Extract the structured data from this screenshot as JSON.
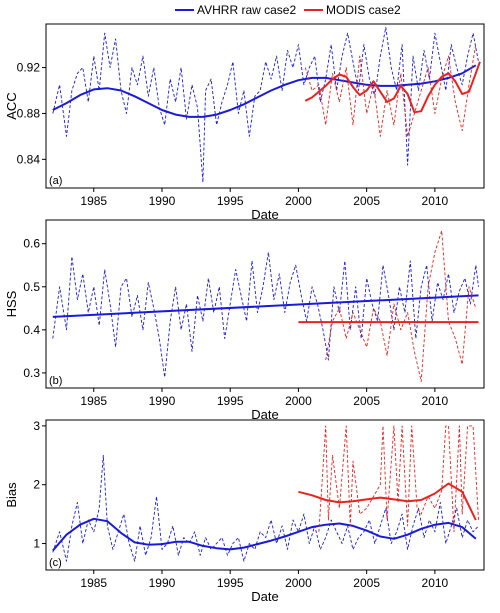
{
  "legend": [
    {
      "name": "AVHRR raw case2",
      "color": "#1a1adb"
    },
    {
      "name": "MODIS case2",
      "color": "#e8231f"
    }
  ],
  "chart_data": [
    {
      "type": "line",
      "panel_tag": "(a)",
      "xlabel": "Date",
      "ylabel": "ACC",
      "xlim": [
        1981.5,
        2013.6
      ],
      "ylim": [
        0.815,
        0.958
      ],
      "xticks": [
        1985,
        1990,
        1995,
        2000,
        2005,
        2010
      ],
      "yticks": [
        0.84,
        0.88,
        0.92
      ],
      "ytick_labels": [
        "0.84",
        "0.88",
        "0.92"
      ],
      "series": [
        {
          "name": "AVHRR raw case2",
          "color": "#1a1adb",
          "style": "dashed",
          "x": [
            1982.0,
            1982.5,
            1983.0,
            1983.4,
            1983.8,
            1984.2,
            1984.6,
            1985.0,
            1985.4,
            1985.8,
            1986.2,
            1986.6,
            1987.0,
            1987.4,
            1987.8,
            1988.2,
            1988.6,
            1989.0,
            1989.4,
            1989.8,
            1990.2,
            1990.6,
            1991.0,
            1991.4,
            1991.8,
            1992.2,
            1992.6,
            1993.0,
            1993.2,
            1993.6,
            1994.0,
            1994.4,
            1994.8,
            1995.2,
            1995.6,
            1996.0,
            1996.4,
            1996.8,
            1997.2,
            1997.6,
            1998.0,
            1998.4,
            1998.8,
            1999.2,
            1999.6,
            2000.0,
            2000.4,
            2000.8,
            2001.2,
            2001.6,
            2002.0,
            2002.4,
            2002.8,
            2003.2,
            2003.6,
            2004.0,
            2004.4,
            2004.8,
            2005.2,
            2005.6,
            2006.0,
            2006.4,
            2006.8,
            2007.2,
            2007.6,
            2008.0,
            2008.4,
            2008.8,
            2009.2,
            2009.6,
            2010.0,
            2010.4,
            2010.8,
            2011.2,
            2011.6,
            2012.0,
            2012.4,
            2012.8,
            2013.2
          ],
          "y": [
            0.88,
            0.905,
            0.86,
            0.9,
            0.915,
            0.92,
            0.89,
            0.93,
            0.9,
            0.95,
            0.92,
            0.945,
            0.9,
            0.88,
            0.92,
            0.905,
            0.93,
            0.895,
            0.92,
            0.885,
            0.87,
            0.91,
            0.89,
            0.92,
            0.875,
            0.905,
            0.885,
            0.82,
            0.9,
            0.91,
            0.87,
            0.89,
            0.905,
            0.925,
            0.88,
            0.9,
            0.86,
            0.895,
            0.9,
            0.925,
            0.91,
            0.93,
            0.9,
            0.935,
            0.92,
            0.94,
            0.905,
            0.92,
            0.93,
            0.89,
            0.91,
            0.94,
            0.9,
            0.93,
            0.95,
            0.925,
            0.9,
            0.94,
            0.91,
            0.895,
            0.93,
            0.955,
            0.92,
            0.9,
            0.94,
            0.835,
            0.93,
            0.9,
            0.935,
            0.91,
            0.95,
            0.925,
            0.9,
            0.94,
            0.92,
            0.905,
            0.93,
            0.95,
            0.925
          ]
        },
        {
          "name": "AVHRR raw case2",
          "color": "#1a1adb",
          "style": "solid",
          "x": [
            1982.0,
            1983.0,
            1984.0,
            1985.0,
            1986.0,
            1987.0,
            1988.0,
            1989.0,
            1990.0,
            1991.0,
            1992.0,
            1993.0,
            1994.0,
            1995.0,
            1996.0,
            1997.0,
            1998.0,
            1999.0,
            2000.0,
            2001.0,
            2002.0,
            2003.0,
            2004.0,
            2005.0,
            2006.0,
            2007.0,
            2008.0,
            2009.0,
            2010.0,
            2011.0,
            2012.0,
            2013.0
          ],
          "y": [
            0.883,
            0.889,
            0.896,
            0.901,
            0.902,
            0.9,
            0.895,
            0.889,
            0.883,
            0.879,
            0.877,
            0.877,
            0.879,
            0.883,
            0.888,
            0.894,
            0.9,
            0.905,
            0.909,
            0.911,
            0.911,
            0.909,
            0.907,
            0.905,
            0.904,
            0.904,
            0.905,
            0.906,
            0.908,
            0.911,
            0.915,
            0.922
          ]
        },
        {
          "name": "MODIS case2",
          "color": "#e8231f",
          "style": "dashed",
          "x": [
            2000.5,
            2001.0,
            2001.5,
            2002.0,
            2002.5,
            2003.0,
            2003.5,
            2004.0,
            2004.5,
            2005.0,
            2005.5,
            2006.0,
            2006.5,
            2007.0,
            2007.5,
            2008.0,
            2008.5,
            2009.0,
            2009.5,
            2010.0,
            2010.5,
            2011.0,
            2011.5,
            2012.0,
            2012.5,
            2013.0
          ],
          "y": [
            0.92,
            0.9,
            0.905,
            0.87,
            0.915,
            0.89,
            0.92,
            0.87,
            0.93,
            0.88,
            0.905,
            0.86,
            0.9,
            0.87,
            0.915,
            0.86,
            0.88,
            0.9,
            0.92,
            0.88,
            0.91,
            0.93,
            0.89,
            0.865,
            0.905,
            0.94
          ]
        },
        {
          "name": "MODIS case2",
          "color": "#e8231f",
          "style": "solid",
          "x": [
            2000.5,
            2001.0,
            2001.5,
            2002.0,
            2002.5,
            2003.0,
            2003.5,
            2004.0,
            2004.5,
            2005.0,
            2005.5,
            2006.0,
            2006.5,
            2007.0,
            2007.5,
            2008.0,
            2008.5,
            2009.0,
            2009.5,
            2010.0,
            2010.5,
            2011.0,
            2011.5,
            2012.0,
            2012.5,
            2013.0,
            2013.3
          ],
          "y": [
            0.891,
            0.894,
            0.899,
            0.904,
            0.91,
            0.914,
            0.912,
            0.903,
            0.896,
            0.9,
            0.908,
            0.899,
            0.89,
            0.893,
            0.904,
            0.897,
            0.881,
            0.882,
            0.895,
            0.905,
            0.912,
            0.915,
            0.908,
            0.897,
            0.899,
            0.915,
            0.925
          ]
        }
      ]
    },
    {
      "type": "line",
      "panel_tag": "(b)",
      "xlabel": "Date",
      "ylabel": "HSS",
      "xlim": [
        1981.5,
        2013.6
      ],
      "ylim": [
        0.265,
        0.655
      ],
      "xticks": [
        1985,
        1990,
        1995,
        2000,
        2005,
        2010
      ],
      "yticks": [
        0.3,
        0.4,
        0.5,
        0.6
      ],
      "ytick_labels": [
        "0.3",
        "0.4",
        "0.5",
        "0.6"
      ],
      "series": [
        {
          "name": "AVHRR raw case2",
          "color": "#1a1adb",
          "style": "dashed",
          "x": [
            1982.0,
            1982.5,
            1983.0,
            1983.4,
            1983.8,
            1984.2,
            1984.6,
            1985.0,
            1985.4,
            1985.8,
            1986.2,
            1986.6,
            1987.0,
            1987.4,
            1987.8,
            1988.2,
            1988.6,
            1989.0,
            1989.4,
            1989.8,
            1990.2,
            1990.6,
            1991.0,
            1991.4,
            1991.8,
            1992.2,
            1992.6,
            1993.0,
            1993.4,
            1993.8,
            1994.2,
            1994.6,
            1995.0,
            1995.4,
            1995.8,
            1996.2,
            1996.6,
            1997.0,
            1997.4,
            1997.8,
            1998.2,
            1998.6,
            1999.0,
            1999.4,
            1999.8,
            2000.2,
            2000.6,
            2001.0,
            2001.4,
            2001.8,
            2002.2,
            2002.6,
            2003.0,
            2003.4,
            2003.8,
            2004.2,
            2004.6,
            2005.0,
            2005.4,
            2005.8,
            2006.2,
            2006.6,
            2007.0,
            2007.4,
            2007.8,
            2008.2,
            2008.6,
            2009.0,
            2009.4,
            2009.8,
            2010.2,
            2010.6,
            2011.0,
            2011.4,
            2011.8,
            2012.2,
            2012.6,
            2013.0,
            2013.2
          ],
          "y": [
            0.38,
            0.5,
            0.4,
            0.57,
            0.47,
            0.53,
            0.44,
            0.5,
            0.41,
            0.54,
            0.46,
            0.36,
            0.5,
            0.52,
            0.43,
            0.48,
            0.4,
            0.51,
            0.45,
            0.38,
            0.29,
            0.42,
            0.5,
            0.4,
            0.46,
            0.35,
            0.48,
            0.42,
            0.52,
            0.44,
            0.5,
            0.38,
            0.46,
            0.54,
            0.48,
            0.42,
            0.56,
            0.44,
            0.5,
            0.58,
            0.47,
            0.53,
            0.44,
            0.51,
            0.55,
            0.48,
            0.42,
            0.5,
            0.46,
            0.4,
            0.33,
            0.5,
            0.44,
            0.56,
            0.4,
            0.5,
            0.38,
            0.52,
            0.46,
            0.42,
            0.55,
            0.48,
            0.4,
            0.5,
            0.44,
            0.56,
            0.38,
            0.5,
            0.55,
            0.42,
            0.51,
            0.47,
            0.53,
            0.44,
            0.49,
            0.52,
            0.46,
            0.55,
            0.5
          ]
        },
        {
          "name": "AVHRR raw case2",
          "color": "#1a1adb",
          "style": "solid",
          "x": [
            1982.0,
            2013.2
          ],
          "y": [
            0.43,
            0.48
          ]
        },
        {
          "name": "MODIS case2",
          "color": "#e8231f",
          "style": "dashed",
          "x": [
            2002.0,
            2002.5,
            2003.0,
            2003.5,
            2004.0,
            2004.5,
            2005.0,
            2005.5,
            2006.0,
            2006.5,
            2007.0,
            2007.5,
            2008.0,
            2008.5,
            2009.0,
            2009.5,
            2010.0,
            2010.5,
            2011.0,
            2011.5,
            2012.0,
            2012.5,
            2013.0
          ],
          "y": [
            0.33,
            0.42,
            0.45,
            0.38,
            0.44,
            0.4,
            0.36,
            0.45,
            0.42,
            0.34,
            0.46,
            0.4,
            0.44,
            0.35,
            0.28,
            0.5,
            0.58,
            0.63,
            0.42,
            0.38,
            0.32,
            0.5,
            0.45
          ]
        },
        {
          "name": "MODIS case2",
          "color": "#e8231f",
          "style": "solid",
          "x": [
            2000.0,
            2013.2
          ],
          "y": [
            0.418,
            0.418
          ]
        }
      ]
    },
    {
      "type": "line",
      "panel_tag": "(c)",
      "xlabel": "Date",
      "ylabel": "Bias",
      "xlim": [
        1981.5,
        2013.6
      ],
      "ylim": [
        0.55,
        3.1
      ],
      "xticks": [
        1985,
        1990,
        1995,
        2000,
        2005,
        2010
      ],
      "yticks": [
        1,
        2,
        3
      ],
      "ytick_labels": [
        "1",
        "2",
        "3"
      ],
      "series": [
        {
          "name": "AVHRR raw case2",
          "color": "#1a1adb",
          "style": "dashed",
          "x": [
            1982.0,
            1982.5,
            1983.0,
            1983.4,
            1983.8,
            1984.2,
            1984.6,
            1985.0,
            1985.4,
            1985.7,
            1986.0,
            1986.4,
            1986.8,
            1987.2,
            1987.6,
            1988.0,
            1988.4,
            1988.8,
            1989.2,
            1989.6,
            1990.0,
            1990.4,
            1990.8,
            1991.2,
            1991.6,
            1992.0,
            1992.4,
            1992.8,
            1993.2,
            1993.6,
            1994.0,
            1994.4,
            1994.8,
            1995.2,
            1995.6,
            1996.0,
            1996.4,
            1996.8,
            1997.2,
            1997.6,
            1998.0,
            1998.4,
            1998.8,
            1999.2,
            1999.6,
            2000.0,
            2000.4,
            2000.8,
            2001.2,
            2001.6,
            2002.0,
            2002.4,
            2002.8,
            2003.2,
            2003.6,
            2004.0,
            2004.4,
            2004.8,
            2005.2,
            2005.6,
            2006.0,
            2006.4,
            2006.8,
            2007.2,
            2007.6,
            2008.0,
            2008.4,
            2008.8,
            2009.2,
            2009.6,
            2010.0,
            2010.4,
            2010.8,
            2011.2,
            2011.6,
            2012.0,
            2012.4,
            2012.8,
            2013.2
          ],
          "y": [
            0.85,
            1.2,
            0.7,
            1.3,
            1.7,
            1.0,
            1.4,
            1.2,
            1.6,
            2.5,
            1.3,
            0.9,
            1.2,
            1.5,
            1.0,
            0.7,
            1.3,
            0.8,
            1.1,
            1.8,
            0.9,
            1.0,
            1.3,
            0.8,
            1.1,
            1.0,
            1.2,
            0.8,
            1.1,
            0.9,
            1.0,
            1.1,
            0.8,
            1.0,
            1.1,
            0.7,
            1.0,
            0.9,
            1.2,
            1.1,
            1.4,
            1.0,
            1.3,
            0.9,
            1.4,
            1.2,
            1.5,
            1.0,
            1.3,
            0.9,
            1.1,
            1.4,
            1.2,
            1.0,
            1.3,
            0.9,
            1.1,
            1.2,
            1.4,
            1.0,
            1.3,
            1.6,
            1.0,
            1.2,
            1.5,
            0.9,
            1.3,
            1.6,
            1.1,
            1.4,
            1.2,
            1.7,
            1.0,
            1.3,
            1.6,
            1.1,
            1.4,
            1.2,
            1.3
          ]
        },
        {
          "name": "AVHRR raw case2",
          "color": "#1a1adb",
          "style": "solid",
          "x": [
            1982.0,
            1983.0,
            1984.0,
            1985.0,
            1986.0,
            1987.0,
            1988.0,
            1989.0,
            1990.0,
            1991.0,
            1992.0,
            1993.0,
            1994.0,
            1995.0,
            1996.0,
            1997.0,
            1998.0,
            1999.0,
            2000.0,
            2001.0,
            2002.0,
            2003.0,
            2004.0,
            2005.0,
            2006.0,
            2007.0,
            2008.0,
            2009.0,
            2010.0,
            2011.0,
            2012.0,
            2013.0
          ],
          "y": [
            0.88,
            1.15,
            1.32,
            1.42,
            1.38,
            1.18,
            1.02,
            0.98,
            0.99,
            1.03,
            1.03,
            0.96,
            0.92,
            0.9,
            0.93,
            0.99,
            1.05,
            1.12,
            1.2,
            1.28,
            1.32,
            1.34,
            1.3,
            1.22,
            1.12,
            1.08,
            1.15,
            1.25,
            1.32,
            1.35,
            1.28,
            1.08
          ]
        },
        {
          "name": "MODIS case2",
          "color": "#e8231f",
          "style": "dashed",
          "x": [
            2001.5,
            2002.0,
            2002.2,
            2002.5,
            2003.0,
            2003.5,
            2003.8,
            2004.0,
            2004.5,
            2005.0,
            2005.5,
            2006.0,
            2006.2,
            2006.5,
            2007.0,
            2007.3,
            2007.6,
            2008.0,
            2008.3,
            2008.7,
            2009.0,
            2009.5,
            2010.0,
            2010.5,
            2010.8,
            2011.0,
            2011.4,
            2011.8,
            2012.0,
            2012.4,
            2012.8,
            2013.2
          ],
          "y": [
            1.2,
            3.0,
            1.4,
            2.5,
            1.6,
            3.0,
            1.3,
            2.4,
            1.5,
            1.6,
            1.8,
            2.0,
            3.0,
            1.4,
            3.0,
            1.7,
            3.0,
            1.3,
            3.0,
            1.6,
            1.5,
            1.8,
            1.6,
            1.9,
            3.0,
            3.0,
            1.2,
            3.0,
            1.5,
            3.0,
            3.0,
            1.4
          ]
        },
        {
          "name": "MODIS case2",
          "color": "#e8231f",
          "style": "solid",
          "x": [
            2000.0,
            2001.0,
            2002.0,
            2003.0,
            2004.0,
            2005.0,
            2006.0,
            2007.0,
            2008.0,
            2009.0,
            2010.0,
            2011.0,
            2012.0,
            2013.0
          ],
          "y": [
            1.88,
            1.82,
            1.74,
            1.7,
            1.72,
            1.75,
            1.78,
            1.75,
            1.72,
            1.74,
            1.85,
            2.02,
            1.88,
            1.4
          ]
        }
      ]
    }
  ]
}
